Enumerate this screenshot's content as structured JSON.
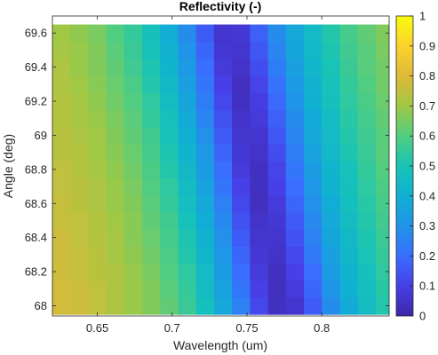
{
  "chart_data": {
    "type": "heatmap",
    "title": "Reflectivity (-)",
    "xlabel": "Wavelength (um)",
    "ylabel": "Angle (deg)",
    "xlim": [
      0.62,
      0.845
    ],
    "ylim": [
      67.94,
      69.7
    ],
    "x_ticks": [
      0.65,
      0.7,
      0.75,
      0.8
    ],
    "x_tick_labels": [
      "0.65",
      "0.7",
      "0.75",
      "0.8"
    ],
    "y_ticks": [
      68,
      68.2,
      68.4,
      68.6,
      68.8,
      69,
      69.2,
      69.4,
      69.6
    ],
    "y_tick_labels": [
      "68",
      "68.2",
      "68.4",
      "68.6",
      "68.8",
      "69",
      "69.2",
      "69.4",
      "69.6"
    ],
    "colorbar": {
      "clim": [
        0,
        1
      ],
      "ticks": [
        0,
        0.1,
        0.2,
        0.3,
        0.4,
        0.5,
        0.6,
        0.7,
        0.8,
        0.9,
        1
      ],
      "tick_labels": [
        "0",
        "0.1",
        "0.2",
        "0.3",
        "0.4",
        "0.5",
        "0.6",
        "0.7",
        "0.8",
        "0.9",
        "1"
      ],
      "colormap": "parula"
    },
    "x": [
      0.626,
      0.638,
      0.65,
      0.662,
      0.674,
      0.686,
      0.698,
      0.71,
      0.722,
      0.734,
      0.746,
      0.758,
      0.77,
      0.782,
      0.794,
      0.806,
      0.818,
      0.83,
      0.842
    ],
    "y": [
      68.0,
      68.1,
      68.2,
      68.3,
      68.4,
      68.5,
      68.6,
      68.7,
      68.8,
      68.9,
      69.0,
      69.1,
      69.2,
      69.3,
      69.4,
      69.5,
      69.6
    ],
    "z": [
      [
        0.78,
        0.77,
        0.75,
        0.72,
        0.69,
        0.66,
        0.62,
        0.56,
        0.48,
        0.37,
        0.25,
        0.12,
        0.04,
        0.06,
        0.16,
        0.28,
        0.38,
        0.46,
        0.52
      ],
      [
        0.78,
        0.77,
        0.75,
        0.72,
        0.69,
        0.66,
        0.61,
        0.55,
        0.46,
        0.35,
        0.22,
        0.1,
        0.04,
        0.08,
        0.18,
        0.3,
        0.4,
        0.47,
        0.53
      ],
      [
        0.77,
        0.76,
        0.74,
        0.72,
        0.69,
        0.65,
        0.6,
        0.54,
        0.45,
        0.33,
        0.2,
        0.08,
        0.04,
        0.1,
        0.2,
        0.32,
        0.41,
        0.48,
        0.54
      ],
      [
        0.77,
        0.76,
        0.74,
        0.71,
        0.68,
        0.64,
        0.59,
        0.52,
        0.43,
        0.31,
        0.18,
        0.07,
        0.05,
        0.12,
        0.23,
        0.34,
        0.43,
        0.5,
        0.55
      ],
      [
        0.77,
        0.75,
        0.73,
        0.71,
        0.67,
        0.63,
        0.58,
        0.51,
        0.41,
        0.29,
        0.16,
        0.06,
        0.06,
        0.14,
        0.25,
        0.36,
        0.44,
        0.51,
        0.56
      ],
      [
        0.76,
        0.75,
        0.73,
        0.7,
        0.67,
        0.62,
        0.57,
        0.49,
        0.39,
        0.27,
        0.14,
        0.05,
        0.07,
        0.16,
        0.27,
        0.37,
        0.46,
        0.52,
        0.57
      ],
      [
        0.76,
        0.74,
        0.72,
        0.69,
        0.66,
        0.61,
        0.55,
        0.47,
        0.37,
        0.25,
        0.12,
        0.04,
        0.08,
        0.18,
        0.29,
        0.39,
        0.47,
        0.53,
        0.58
      ],
      [
        0.75,
        0.74,
        0.72,
        0.69,
        0.65,
        0.6,
        0.54,
        0.46,
        0.35,
        0.22,
        0.1,
        0.04,
        0.1,
        0.2,
        0.31,
        0.41,
        0.48,
        0.54,
        0.59
      ],
      [
        0.75,
        0.73,
        0.71,
        0.68,
        0.64,
        0.59,
        0.52,
        0.44,
        0.33,
        0.2,
        0.08,
        0.04,
        0.11,
        0.22,
        0.33,
        0.42,
        0.49,
        0.55,
        0.6
      ],
      [
        0.74,
        0.73,
        0.7,
        0.67,
        0.63,
        0.58,
        0.51,
        0.42,
        0.31,
        0.18,
        0.07,
        0.05,
        0.13,
        0.24,
        0.35,
        0.44,
        0.51,
        0.56,
        0.61
      ],
      [
        0.74,
        0.72,
        0.7,
        0.66,
        0.62,
        0.57,
        0.49,
        0.4,
        0.29,
        0.16,
        0.06,
        0.06,
        0.15,
        0.26,
        0.37,
        0.45,
        0.52,
        0.57,
        0.61
      ],
      [
        0.73,
        0.71,
        0.69,
        0.65,
        0.61,
        0.55,
        0.48,
        0.38,
        0.26,
        0.14,
        0.05,
        0.08,
        0.17,
        0.28,
        0.38,
        0.46,
        0.53,
        0.58,
        0.62
      ],
      [
        0.73,
        0.71,
        0.68,
        0.64,
        0.6,
        0.54,
        0.46,
        0.36,
        0.24,
        0.12,
        0.04,
        0.09,
        0.19,
        0.3,
        0.4,
        0.48,
        0.54,
        0.59,
        0.63
      ],
      [
        0.72,
        0.7,
        0.67,
        0.63,
        0.59,
        0.52,
        0.44,
        0.34,
        0.22,
        0.1,
        0.04,
        0.11,
        0.21,
        0.32,
        0.41,
        0.49,
        0.55,
        0.6,
        0.64
      ],
      [
        0.72,
        0.69,
        0.66,
        0.62,
        0.57,
        0.51,
        0.42,
        0.32,
        0.2,
        0.08,
        0.05,
        0.13,
        0.24,
        0.34,
        0.43,
        0.5,
        0.56,
        0.61,
        0.64
      ],
      [
        0.71,
        0.69,
        0.66,
        0.61,
        0.56,
        0.49,
        0.41,
        0.3,
        0.18,
        0.07,
        0.06,
        0.15,
        0.26,
        0.36,
        0.44,
        0.51,
        0.57,
        0.61,
        0.65
      ],
      [
        0.7,
        0.68,
        0.65,
        0.6,
        0.55,
        0.48,
        0.39,
        0.28,
        0.16,
        0.06,
        0.07,
        0.17,
        0.28,
        0.37,
        0.45,
        0.52,
        0.58,
        0.62,
        0.66
      ]
    ]
  }
}
